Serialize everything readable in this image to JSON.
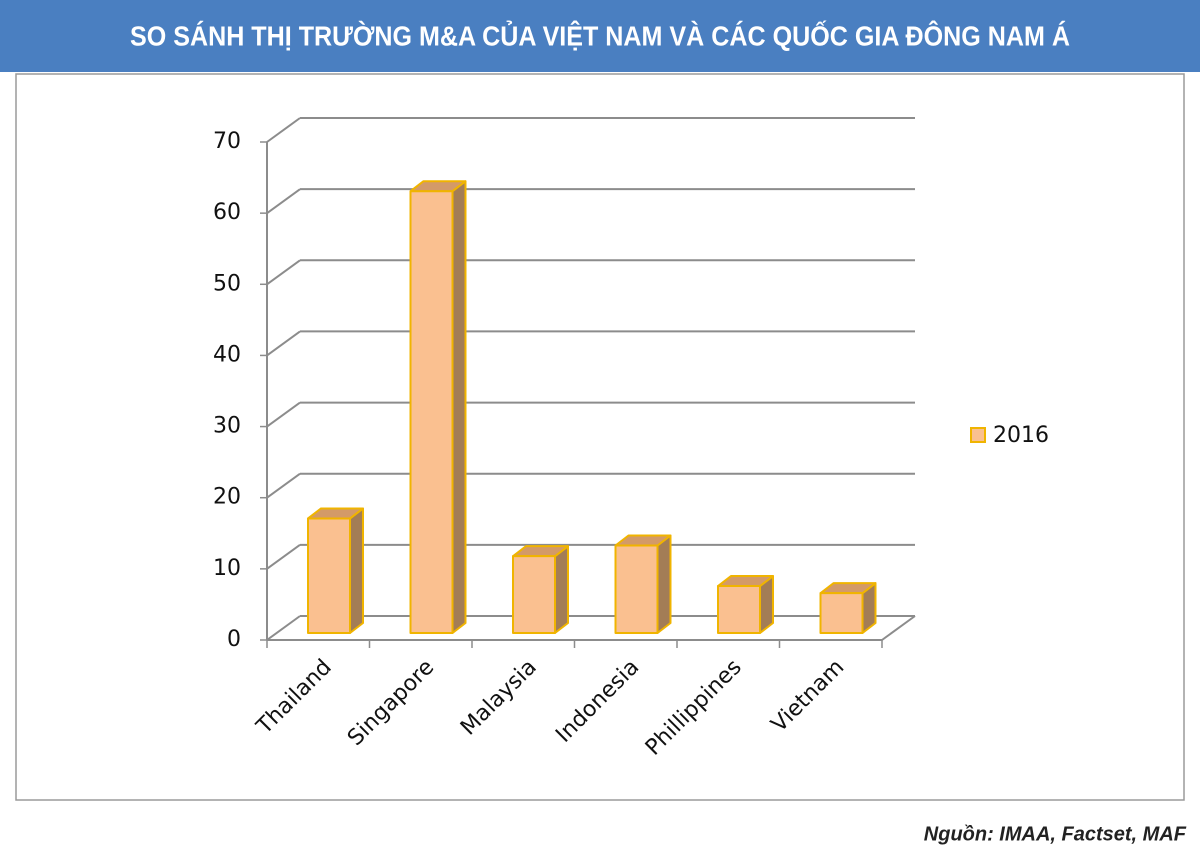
{
  "chart_data": {
    "type": "bar3d",
    "title": "SO SÁNH THỊ TRƯỜNG M&A CỦA VIỆT NAM VÀ CÁC QUỐC GIA ĐÔNG NAM Á",
    "source": "Nguồn:  IMAA, Factset, MAF",
    "categories": [
      "Thailand",
      "Singapore",
      "Malaysia",
      "Indonesia",
      "Phillippines",
      "Vietnam"
    ],
    "series": [
      {
        "name": "2016",
        "color": "#fac090",
        "values": [
          16.1,
          62.1,
          10.8,
          12.3,
          6.6,
          5.6
        ]
      }
    ],
    "ylim": [
      0,
      70
    ],
    "yticks": [
      0,
      10,
      20,
      30,
      40,
      50,
      60,
      70
    ],
    "grid": true,
    "legend": "right"
  }
}
